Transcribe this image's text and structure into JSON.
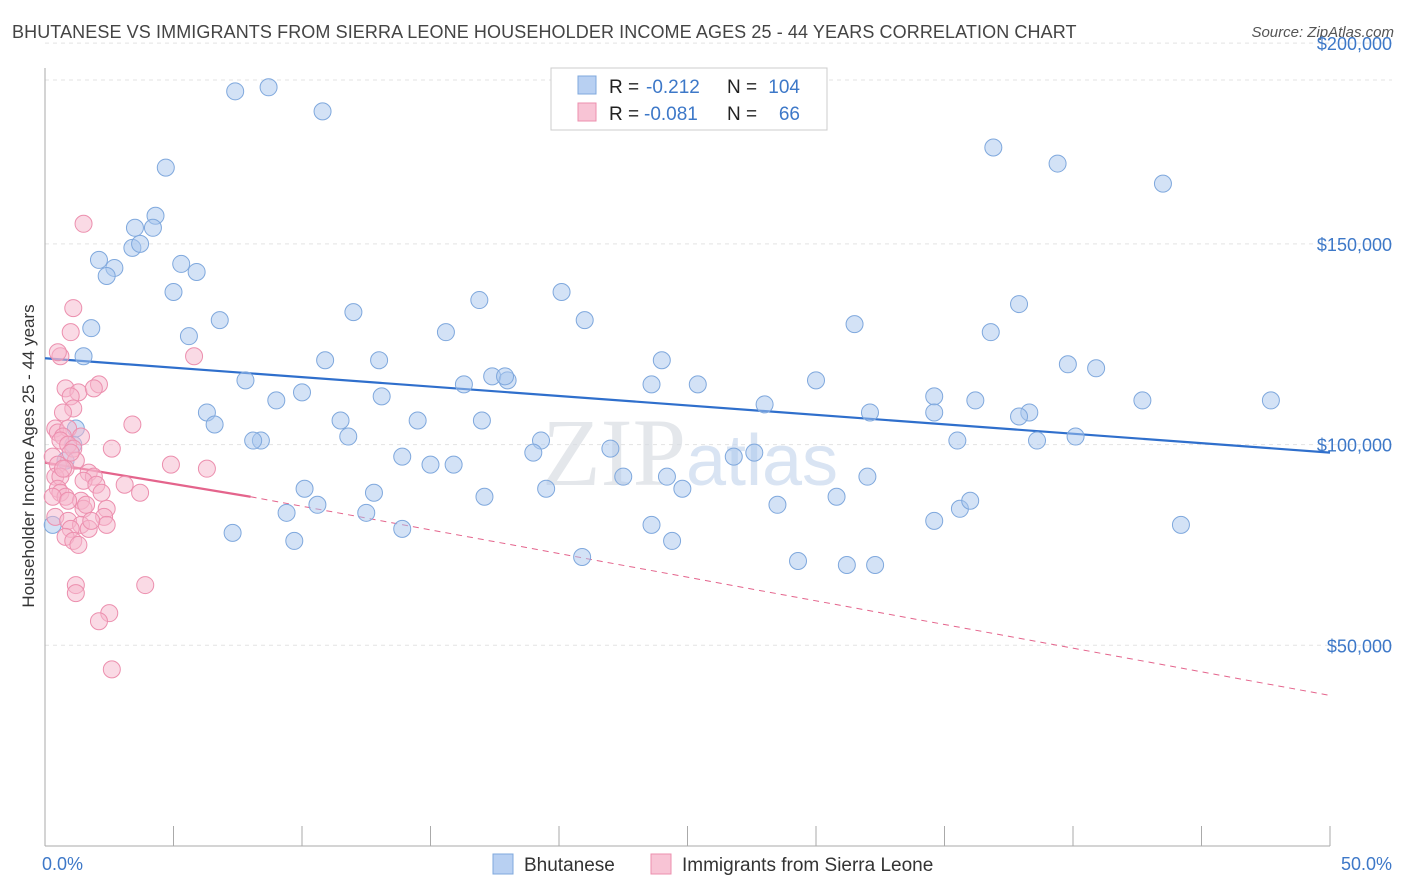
{
  "title": "BHUTANESE VS IMMIGRANTS FROM SIERRA LEONE HOUSEHOLDER INCOME AGES 25 - 44 YEARS CORRELATION CHART",
  "source": "Source: ZipAtlas.com",
  "watermark": "ZIPatlas",
  "chart_data": {
    "type": "scatter",
    "ylabel": "Householder Income Ages 25 - 44 years",
    "xlim": [
      0,
      50
    ],
    "ylim": [
      0,
      210000
    ],
    "x_tick_labels": [
      "0.0%",
      "50.0%"
    ],
    "y_ticks": [
      50000,
      100000,
      150000,
      200000
    ],
    "y_tick_labels": [
      "$50,000",
      "$100,000",
      "$150,000",
      "$200,000"
    ],
    "grid": true,
    "legend_top": [
      {
        "r_label": "R =",
        "r_value": "-0.212",
        "n_label": "N =",
        "n_value": "104"
      },
      {
        "r_label": "R =",
        "r_value": "-0.081",
        "n_label": "N =",
        "n_value": "66"
      }
    ],
    "series": [
      {
        "name": "Bhutanese",
        "color": "#a8c6ee",
        "edge": "#7fa8dd",
        "trend": {
          "x": [
            0,
            50
          ],
          "y": [
            121500,
            98000
          ],
          "color": "#2f6fcc"
        },
        "points": [
          [
            7.4,
            188000
          ],
          [
            8.7,
            189000
          ],
          [
            10.8,
            183000
          ],
          [
            4.7,
            169000
          ],
          [
            36.9,
            174000
          ],
          [
            39.4,
            170000
          ],
          [
            43.5,
            165000
          ],
          [
            3.5,
            154000
          ],
          [
            4.3,
            157000
          ],
          [
            3.4,
            149000
          ],
          [
            3.7,
            150000
          ],
          [
            4.2,
            154000
          ],
          [
            2.1,
            146000
          ],
          [
            2.7,
            144000
          ],
          [
            2.4,
            142000
          ],
          [
            5.3,
            145000
          ],
          [
            5.9,
            143000
          ],
          [
            5.0,
            138000
          ],
          [
            1.8,
            129000
          ],
          [
            6.8,
            131000
          ],
          [
            12.0,
            133000
          ],
          [
            16.9,
            136000
          ],
          [
            20.1,
            138000
          ],
          [
            21.0,
            131000
          ],
          [
            31.5,
            130000
          ],
          [
            37.9,
            135000
          ],
          [
            36.8,
            128000
          ],
          [
            5.6,
            127000
          ],
          [
            15.6,
            128000
          ],
          [
            1.5,
            122000
          ],
          [
            10.9,
            121000
          ],
          [
            13.0,
            121000
          ],
          [
            17.4,
            117000
          ],
          [
            18.0,
            116000
          ],
          [
            24.0,
            121000
          ],
          [
            39.8,
            120000
          ],
          [
            40.9,
            119000
          ],
          [
            7.8,
            116000
          ],
          [
            16.3,
            115000
          ],
          [
            17.9,
            117000
          ],
          [
            23.6,
            115000
          ],
          [
            30.0,
            116000
          ],
          [
            10.0,
            113000
          ],
          [
            25.4,
            115000
          ],
          [
            34.6,
            112000
          ],
          [
            47.7,
            111000
          ],
          [
            9.0,
            111000
          ],
          [
            13.1,
            112000
          ],
          [
            36.2,
            111000
          ],
          [
            42.7,
            111000
          ],
          [
            28.0,
            110000
          ],
          [
            34.6,
            108000
          ],
          [
            38.3,
            108000
          ],
          [
            32.1,
            108000
          ],
          [
            37.9,
            107000
          ],
          [
            6.3,
            108000
          ],
          [
            11.5,
            106000
          ],
          [
            14.5,
            106000
          ],
          [
            17.0,
            106000
          ],
          [
            6.6,
            105000
          ],
          [
            11.8,
            102000
          ],
          [
            8.4,
            101000
          ],
          [
            8.1,
            101000
          ],
          [
            19.3,
            101000
          ],
          [
            35.5,
            101000
          ],
          [
            38.6,
            101000
          ],
          [
            40.1,
            102000
          ],
          [
            19.0,
            98000
          ],
          [
            22.0,
            99000
          ],
          [
            27.6,
            98000
          ],
          [
            26.8,
            97000
          ],
          [
            13.9,
            97000
          ],
          [
            15.0,
            95000
          ],
          [
            15.9,
            95000
          ],
          [
            10.1,
            89000
          ],
          [
            12.8,
            88000
          ],
          [
            17.1,
            87000
          ],
          [
            22.5,
            92000
          ],
          [
            19.5,
            89000
          ],
          [
            24.2,
            92000
          ],
          [
            24.8,
            89000
          ],
          [
            28.5,
            85000
          ],
          [
            32.0,
            92000
          ],
          [
            30.8,
            87000
          ],
          [
            34.6,
            81000
          ],
          [
            35.6,
            84000
          ],
          [
            36.0,
            86000
          ],
          [
            9.4,
            83000
          ],
          [
            10.6,
            85000
          ],
          [
            12.5,
            83000
          ],
          [
            13.9,
            79000
          ],
          [
            7.3,
            78000
          ],
          [
            9.7,
            76000
          ],
          [
            20.9,
            72000
          ],
          [
            23.6,
            80000
          ],
          [
            24.4,
            76000
          ],
          [
            29.3,
            71000
          ],
          [
            31.2,
            70000
          ],
          [
            32.3,
            70000
          ],
          [
            44.2,
            80000
          ],
          [
            0.3,
            80000
          ],
          [
            0.8,
            96000
          ],
          [
            1.1,
            100000
          ],
          [
            1.2,
            104000
          ]
        ]
      },
      {
        "name": "Immigrants from Sierra Leone",
        "color": "#f6b6cb",
        "edge": "#ec8fae",
        "trend": {
          "x": [
            0,
            8
          ],
          "y": [
            95500,
            87000
          ],
          "x_dash_end": 50,
          "y_dash_end": 37500,
          "color": "#e4648c"
        },
        "points": [
          [
            1.5,
            155000
          ],
          [
            1.1,
            134000
          ],
          [
            1.0,
            128000
          ],
          [
            0.6,
            122000
          ],
          [
            0.5,
            123000
          ],
          [
            5.8,
            122000
          ],
          [
            0.8,
            114000
          ],
          [
            1.3,
            113000
          ],
          [
            2.1,
            115000
          ],
          [
            1.9,
            114000
          ],
          [
            1.0,
            112000
          ],
          [
            1.1,
            109000
          ],
          [
            0.7,
            108000
          ],
          [
            3.4,
            105000
          ],
          [
            0.4,
            104000
          ],
          [
            0.5,
            103000
          ],
          [
            0.9,
            104000
          ],
          [
            0.7,
            102000
          ],
          [
            1.4,
            102000
          ],
          [
            0.6,
            101000
          ],
          [
            0.9,
            100000
          ],
          [
            1.1,
            99000
          ],
          [
            2.6,
            99000
          ],
          [
            0.3,
            97000
          ],
          [
            1.2,
            96000
          ],
          [
            0.5,
            95000
          ],
          [
            0.8,
            94000
          ],
          [
            4.9,
            95000
          ],
          [
            6.3,
            94000
          ],
          [
            0.4,
            92000
          ],
          [
            0.6,
            92000
          ],
          [
            1.7,
            93000
          ],
          [
            1.9,
            92000
          ],
          [
            1.5,
            91000
          ],
          [
            2.0,
            90000
          ],
          [
            0.5,
            89000
          ],
          [
            3.1,
            90000
          ],
          [
            0.6,
            88000
          ],
          [
            0.8,
            87000
          ],
          [
            3.7,
            88000
          ],
          [
            0.3,
            87000
          ],
          [
            1.4,
            86000
          ],
          [
            1.5,
            84000
          ],
          [
            1.6,
            85000
          ],
          [
            2.4,
            84000
          ],
          [
            0.4,
            82000
          ],
          [
            0.9,
            81000
          ],
          [
            2.3,
            82000
          ],
          [
            1.4,
            80000
          ],
          [
            1.0,
            79000
          ],
          [
            1.7,
            79000
          ],
          [
            2.4,
            80000
          ],
          [
            0.8,
            77000
          ],
          [
            1.1,
            76000
          ],
          [
            1.3,
            75000
          ],
          [
            1.2,
            65000
          ],
          [
            1.2,
            63000
          ],
          [
            3.9,
            65000
          ],
          [
            2.5,
            58000
          ],
          [
            2.1,
            56000
          ],
          [
            2.6,
            44000
          ],
          [
            0.7,
            94000
          ],
          [
            1.0,
            98000
          ],
          [
            1.8,
            81000
          ],
          [
            2.2,
            88000
          ],
          [
            0.9,
            86000
          ]
        ]
      }
    ]
  }
}
